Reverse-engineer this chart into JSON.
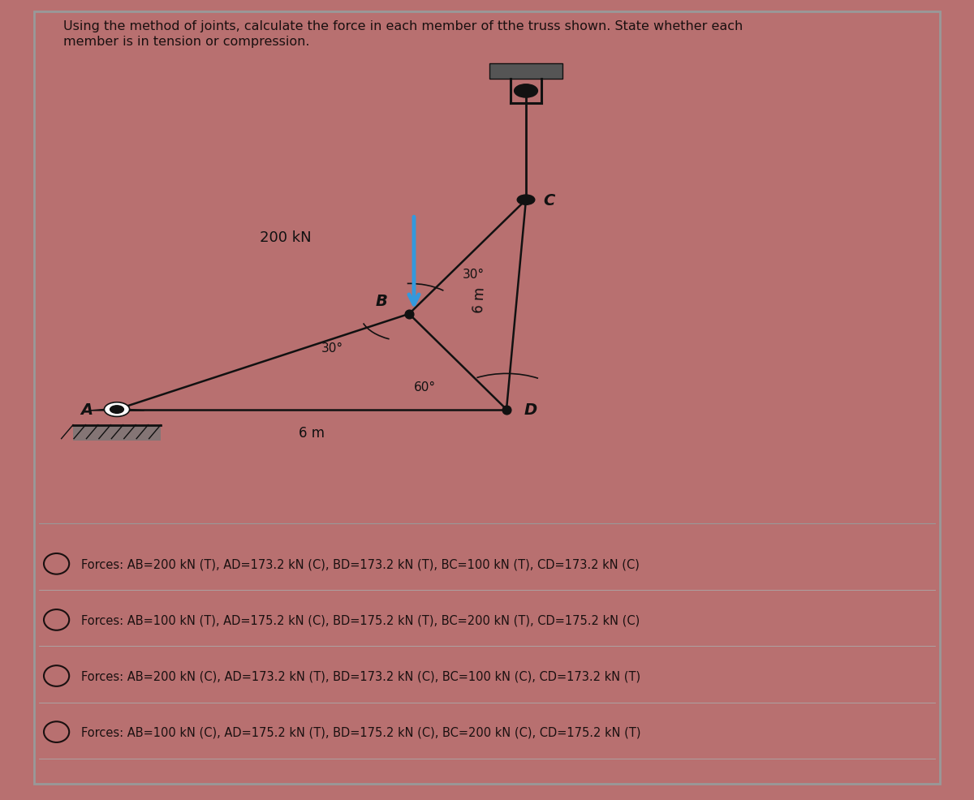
{
  "title_line1": "Using the method of joints, calculate the force in each member of tthe truss shown. State whether each",
  "title_line2": "member is in tension or compression.",
  "bg_color": "#b87070",
  "panel_inner_bg": "#c48080",
  "text_color": "#1a1010",
  "load_label": "200 kN",
  "label_A": "A",
  "label_B": "B",
  "label_C": "C",
  "label_D": "D",
  "label_6m_bottom": "6 m",
  "label_6m_cd": "6 m",
  "angle_30_upper": "30°",
  "angle_60": "60°",
  "angle_30_lower": "30°",
  "options": [
    "Forces: AB=200 kN (T), AD=173.2 kN (C), BD=173.2 kN (T), BC=100 kN (T), CD=173.2 kN (C)",
    "Forces: AB=100 kN (T), AD=175.2 kN (C), BD=175.2 kN (T), BC=200 kN (T), CD=175.2 kN (C)",
    "Forces: AB=200 kN (C), AD=173.2 kN (T), BD=173.2 kN (C), BC=100 kN (C), CD=173.2 kN (T)",
    "Forces: AB=100 kN (C), AD=175.2 kN (T), BD=175.2 kN (C), BC=200 kN (C), CD=175.2 kN (T)"
  ],
  "arrow_color": "#3399dd",
  "member_color": "#111111",
  "dark_gray": "#444444",
  "node_color": "#111111",
  "support_plate_color": "#555555",
  "wall_fill": "#777777"
}
